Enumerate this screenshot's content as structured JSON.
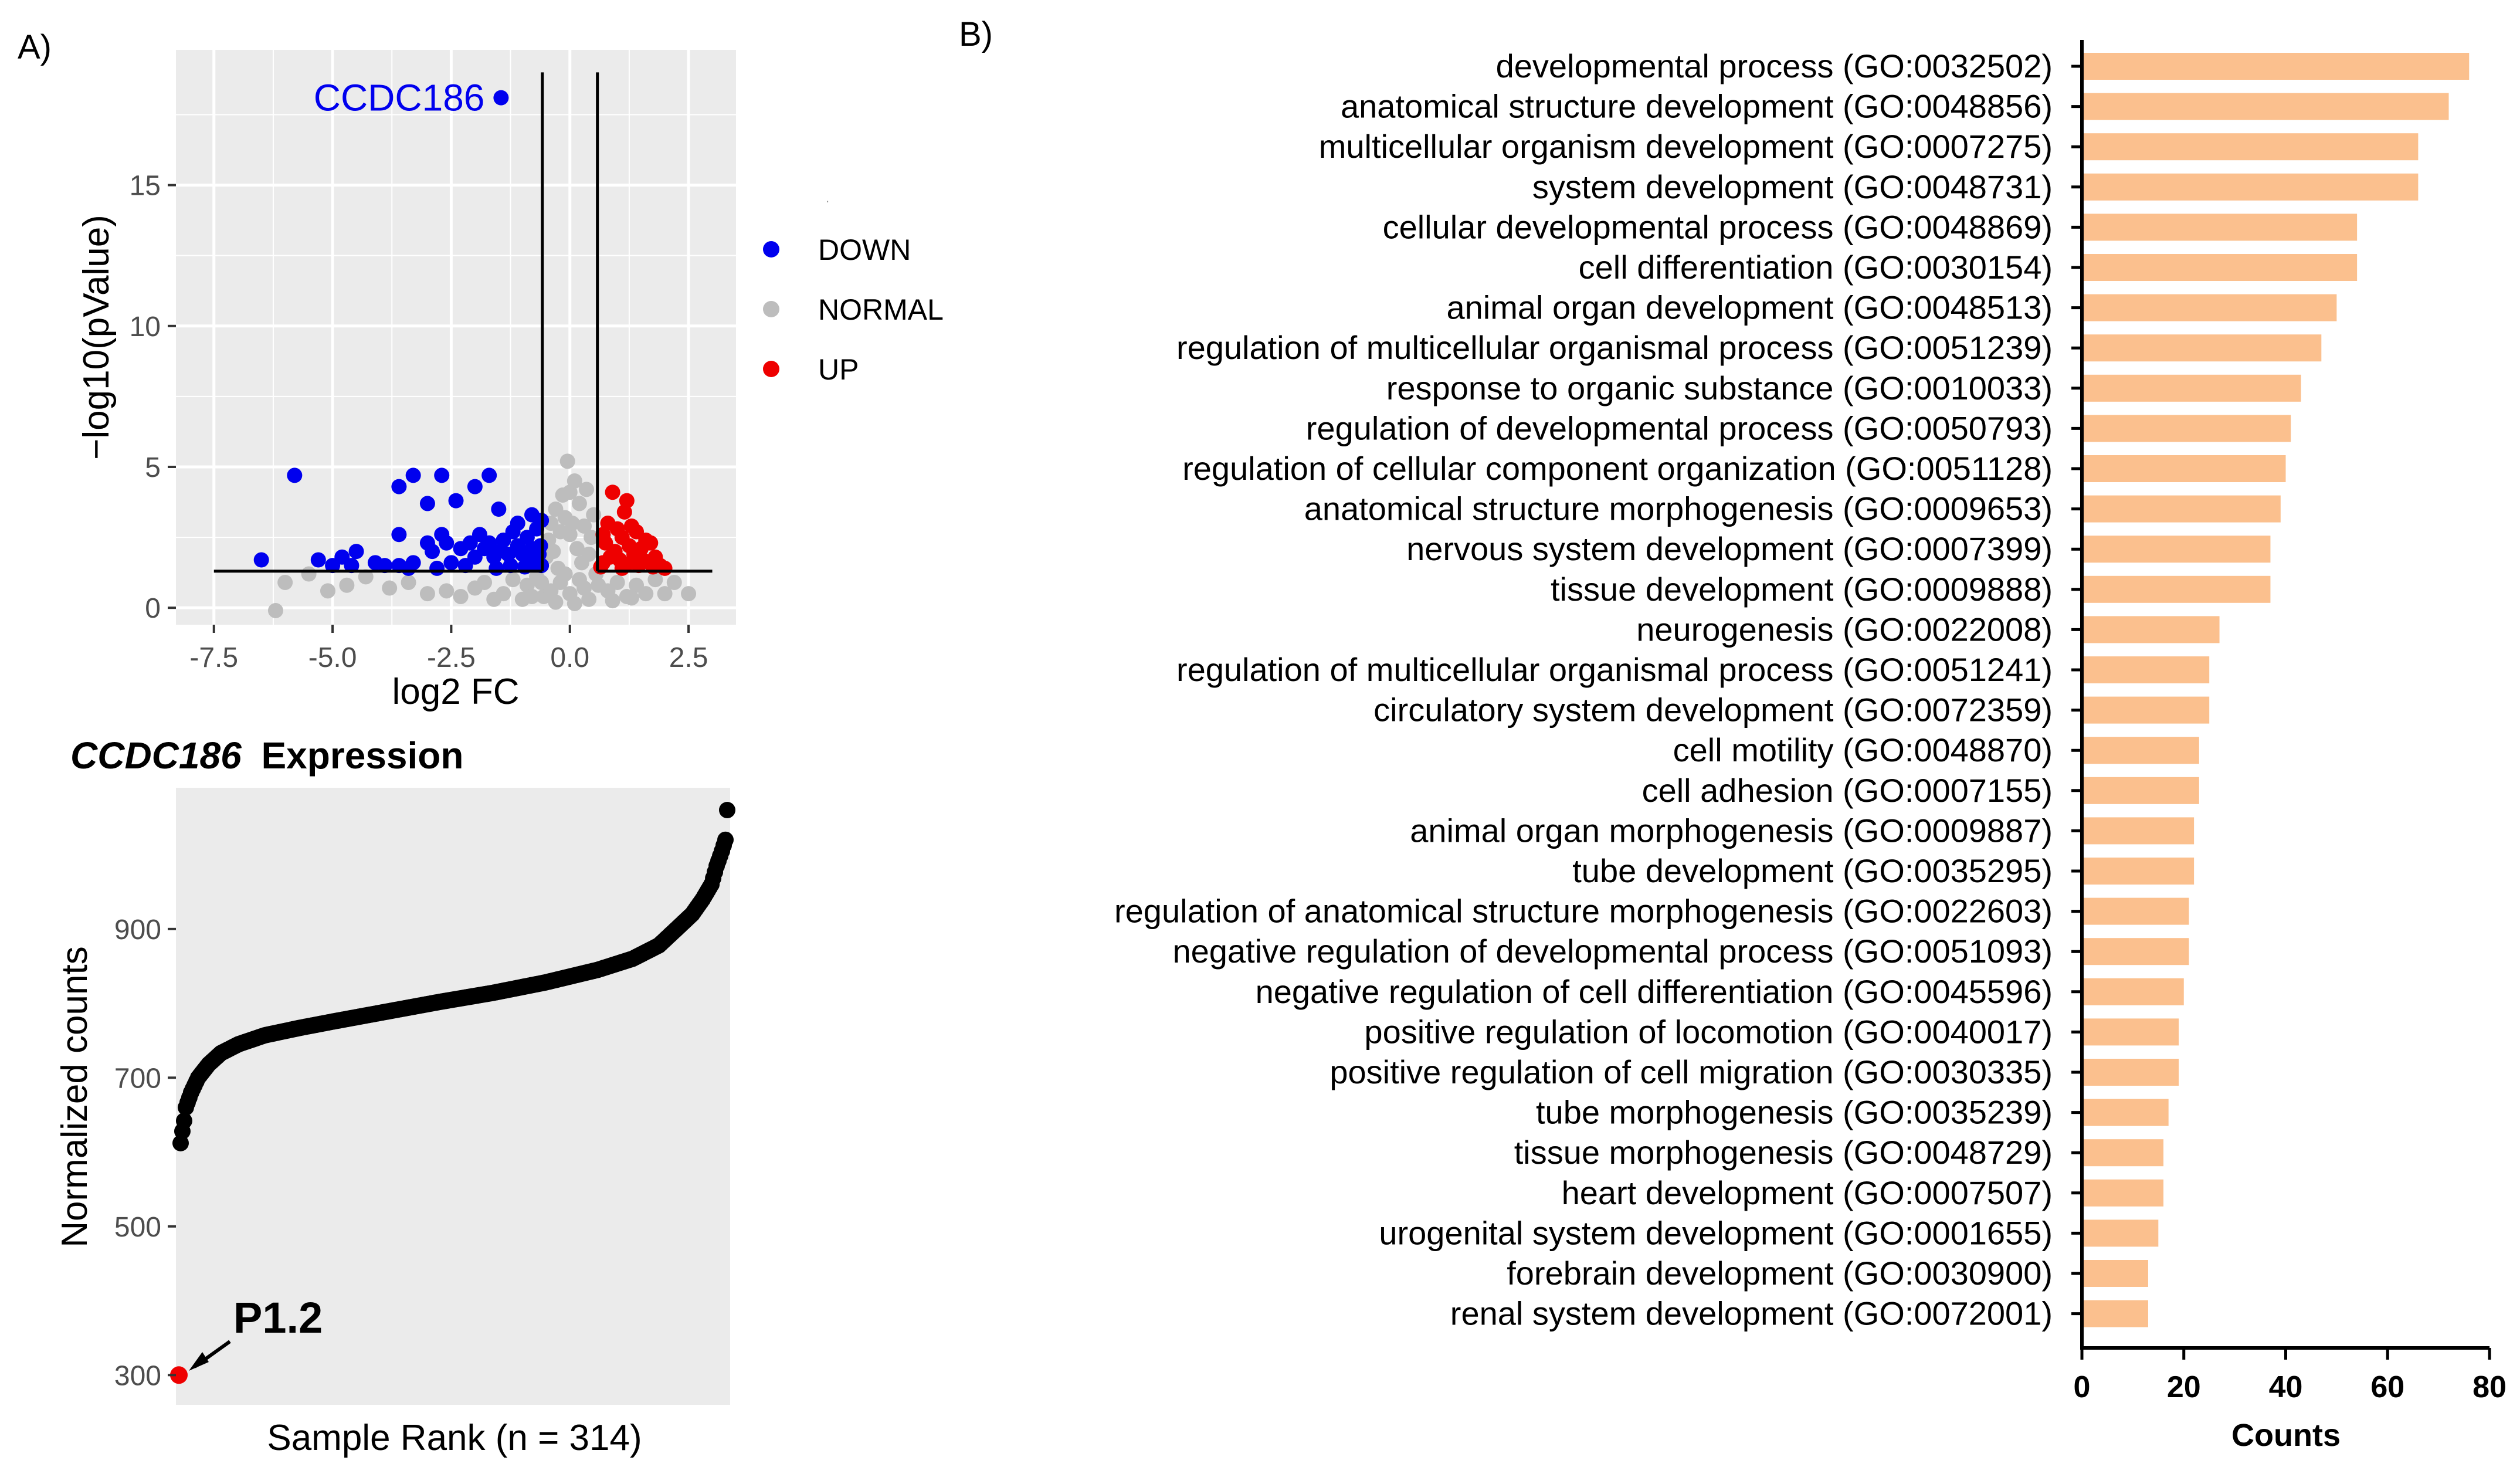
{
  "colors": {
    "panel_bg": "#ebebeb",
    "grid": "#ffffff",
    "down": "#0000ee",
    "normal": "#bdbdbd",
    "up": "#ee0000",
    "bar": "#fbc08e",
    "black": "#000000",
    "axis_text": "#4d4d4d"
  },
  "panel_a_label": "A)",
  "panel_b_label": "B)",
  "volcano": {
    "ylabel": "−log10(pValue)",
    "xlabel": "log2 FC",
    "annotation_gene": "CCDC186",
    "legend_title": ".",
    "legend": [
      {
        "key": "down",
        "label": "DOWN"
      },
      {
        "key": "normal",
        "label": "NORMAL"
      },
      {
        "key": "up",
        "label": "UP"
      }
    ]
  },
  "expression": {
    "title_gene": "CCDC186",
    "title_rest": "Expression",
    "ylabel": "Normalized counts",
    "xlabel": "Sample Rank (n = 314)",
    "highlight_label": "P1.2"
  },
  "go": {
    "xlabel": "Counts"
  },
  "chart_data": [
    {
      "type": "scatter",
      "name": "volcano",
      "xlabel": "log2 FC",
      "ylabel": "−log10(pValue)",
      "xlim": [
        -8.3,
        3.5
      ],
      "ylim": [
        -0.6,
        19.8
      ],
      "xticks": [
        -7.5,
        -5.0,
        -2.5,
        0.0,
        2.5
      ],
      "xtick_labels": [
        "-7.5",
        "-5.0",
        "-2.5",
        "0.0",
        "2.5"
      ],
      "yticks": [
        0,
        5,
        10,
        15
      ],
      "ytick_labels": [
        "0",
        "5",
        "10",
        "15"
      ],
      "thresholds": {
        "log2fc_low": -0.58,
        "log2fc_high": 0.58,
        "neg_log10_p": 1.3,
        "vline_top": 19.0
      },
      "legend": [
        "DOWN",
        "NORMAL",
        "UP"
      ],
      "annotation": {
        "text": "CCDC186",
        "x": -1.45,
        "y": 18.1
      },
      "series": [
        {
          "name": "DOWN",
          "points": [
            [
              -1.45,
              18.1
            ],
            [
              -5.8,
              4.7
            ],
            [
              -3.3,
              4.7
            ],
            [
              -2.7,
              4.7
            ],
            [
              -3.6,
              4.3
            ],
            [
              -2.0,
              4.3
            ],
            [
              -1.7,
              4.7
            ],
            [
              -2.4,
              3.8
            ],
            [
              -3.0,
              3.7
            ],
            [
              -1.5,
              3.5
            ],
            [
              -0.8,
              3.3
            ],
            [
              -0.6,
              3.1
            ],
            [
              -1.1,
              3.0
            ],
            [
              -3.6,
              2.6
            ],
            [
              -4.5,
              2.0
            ],
            [
              -4.8,
              1.8
            ],
            [
              -6.5,
              1.7
            ],
            [
              -5.3,
              1.7
            ],
            [
              -5.0,
              1.5
            ],
            [
              -4.6,
              1.5
            ],
            [
              -4.1,
              1.6
            ],
            [
              -3.9,
              1.5
            ],
            [
              -3.6,
              1.5
            ],
            [
              -3.3,
              1.6
            ],
            [
              -3.0,
              2.3
            ],
            [
              -2.9,
              2.0
            ],
            [
              -2.7,
              2.6
            ],
            [
              -2.6,
              2.3
            ],
            [
              -2.5,
              1.6
            ],
            [
              -2.3,
              2.1
            ],
            [
              -2.1,
              2.3
            ],
            [
              -2.0,
              1.8
            ],
            [
              -1.9,
              2.6
            ],
            [
              -1.8,
              2.1
            ],
            [
              -1.7,
              2.3
            ],
            [
              -1.6,
              1.8
            ],
            [
              -1.5,
              2.0
            ],
            [
              -1.4,
              2.4
            ],
            [
              -1.3,
              1.9
            ],
            [
              -1.2,
              2.7
            ],
            [
              -1.1,
              2.2
            ],
            [
              -1.0,
              1.9
            ],
            [
              -0.9,
              2.5
            ],
            [
              -0.85,
              1.7
            ],
            [
              -0.8,
              2.1
            ],
            [
              -0.75,
              1.6
            ],
            [
              -0.7,
              2.8
            ],
            [
              -0.65,
              1.9
            ],
            [
              -0.62,
              2.2
            ],
            [
              -0.6,
              1.5
            ],
            [
              -2.8,
              1.4
            ],
            [
              -3.4,
              1.4
            ],
            [
              -1.25,
              1.5
            ],
            [
              -1.55,
              1.4
            ],
            [
              -2.2,
              1.5
            ],
            [
              -0.95,
              1.45
            ]
          ]
        },
        {
          "name": "NORMAL",
          "points": [
            [
              -6.0,
              0.9
            ],
            [
              -5.5,
              1.2
            ],
            [
              -5.1,
              0.6
            ],
            [
              -4.7,
              0.8
            ],
            [
              -4.3,
              1.1
            ],
            [
              -3.8,
              0.7
            ],
            [
              -3.4,
              0.9
            ],
            [
              -6.2,
              -0.1
            ],
            [
              -3.0,
              0.5
            ],
            [
              -2.6,
              0.6
            ],
            [
              -2.3,
              0.4
            ],
            [
              -2.0,
              0.7
            ],
            [
              -1.8,
              0.9
            ],
            [
              -1.6,
              0.3
            ],
            [
              -1.4,
              0.5
            ],
            [
              -1.2,
              1.0
            ],
            [
              -1.0,
              0.3
            ],
            [
              -0.9,
              0.8
            ],
            [
              -0.7,
              1.1
            ],
            [
              -0.55,
              0.4
            ],
            [
              -0.5,
              1.8
            ],
            [
              -0.45,
              2.4
            ],
            [
              -0.4,
              3.0
            ],
            [
              -0.35,
              2.0
            ],
            [
              -0.3,
              3.5
            ],
            [
              -0.25,
              1.4
            ],
            [
              -0.2,
              2.7
            ],
            [
              -0.15,
              4.0
            ],
            [
              -0.1,
              3.2
            ],
            [
              -0.05,
              5.2
            ],
            [
              0.0,
              4.1
            ],
            [
              0.0,
              2.6
            ],
            [
              0.05,
              3.0
            ],
            [
              0.1,
              4.5
            ],
            [
              0.15,
              2.1
            ],
            [
              0.2,
              3.7
            ],
            [
              0.25,
              1.6
            ],
            [
              0.3,
              2.9
            ],
            [
              0.35,
              4.2
            ],
            [
              0.4,
              1.9
            ],
            [
              0.45,
              2.5
            ],
            [
              0.5,
              3.3
            ],
            [
              0.55,
              1.2
            ],
            [
              -0.4,
              0.6
            ],
            [
              -0.2,
              0.9
            ],
            [
              0.0,
              0.5
            ],
            [
              0.2,
              1.0
            ],
            [
              0.4,
              0.3
            ],
            [
              0.6,
              0.8
            ],
            [
              0.8,
              0.6
            ],
            [
              1.0,
              0.9
            ],
            [
              1.2,
              0.4
            ],
            [
              1.4,
              0.8
            ],
            [
              1.6,
              0.5
            ],
            [
              1.8,
              1.0
            ],
            [
              2.0,
              0.5
            ],
            [
              2.2,
              0.9
            ],
            [
              2.5,
              0.5
            ],
            [
              -0.3,
              0.2
            ],
            [
              0.1,
              0.15
            ],
            [
              0.3,
              0.7
            ],
            [
              -0.1,
              1.2
            ],
            [
              -0.6,
              0.9
            ],
            [
              -0.8,
              0.4
            ],
            [
              0.9,
              0.25
            ],
            [
              1.3,
              0.35
            ]
          ]
        },
        {
          "name": "UP",
          "points": [
            [
              0.9,
              4.1
            ],
            [
              1.2,
              3.8
            ],
            [
              1.15,
              3.4
            ],
            [
              0.8,
              3.0
            ],
            [
              1.3,
              2.9
            ],
            [
              1.0,
              2.8
            ],
            [
              1.4,
              2.7
            ],
            [
              0.7,
              2.6
            ],
            [
              1.1,
              2.5
            ],
            [
              1.6,
              2.4
            ],
            [
              1.7,
              2.3
            ],
            [
              0.75,
              2.3
            ],
            [
              1.25,
              2.2
            ],
            [
              1.5,
              2.1
            ],
            [
              0.95,
              2.0
            ],
            [
              1.35,
              1.9
            ],
            [
              1.8,
              1.8
            ],
            [
              0.85,
              1.8
            ],
            [
              1.05,
              1.7
            ],
            [
              1.6,
              1.65
            ],
            [
              1.9,
              1.5
            ],
            [
              1.45,
              1.5
            ],
            [
              0.7,
              1.6
            ],
            [
              1.2,
              1.55
            ],
            [
              1.75,
              1.45
            ],
            [
              1.1,
              1.4
            ],
            [
              0.65,
              1.45
            ],
            [
              2.0,
              1.4
            ]
          ]
        }
      ]
    },
    {
      "type": "scatter",
      "name": "ccdc186_expression",
      "title": "CCDC186 Expression",
      "xlabel": "Sample Rank (n = 314)",
      "ylabel": "Normalized counts",
      "xlim": [
        1,
        314
      ],
      "ylim": [
        260,
        1090
      ],
      "yticks": [
        300,
        500,
        700,
        900
      ],
      "ytick_labels": [
        "300",
        "500",
        "700",
        "900"
      ],
      "grid": false,
      "rank_curve": [
        [
          1,
          300
        ],
        [
          2,
          612
        ],
        [
          3,
          628
        ],
        [
          4,
          642
        ],
        [
          5,
          660
        ],
        [
          8,
          680
        ],
        [
          12,
          700
        ],
        [
          18,
          718
        ],
        [
          25,
          733
        ],
        [
          35,
          745
        ],
        [
          50,
          757
        ],
        [
          70,
          767
        ],
        [
          90,
          776
        ],
        [
          120,
          789
        ],
        [
          150,
          802
        ],
        [
          180,
          814
        ],
        [
          210,
          828
        ],
        [
          240,
          845
        ],
        [
          260,
          860
        ],
        [
          275,
          878
        ],
        [
          285,
          900
        ],
        [
          294,
          920
        ],
        [
          300,
          940
        ],
        [
          305,
          960
        ],
        [
          308,
          985
        ],
        [
          311,
          1005
        ],
        [
          313,
          1020
        ],
        [
          314,
          1060
        ]
      ],
      "highlight": {
        "label": "P1.2",
        "rank": 1,
        "value": 300
      }
    },
    {
      "type": "bar",
      "name": "go_enrichment",
      "orientation": "horizontal",
      "xlabel": "Counts",
      "xlim": [
        0,
        80
      ],
      "xticks": [
        0,
        20,
        40,
        60,
        80
      ],
      "xtick_labels": [
        "0",
        "20",
        "40",
        "60",
        "80"
      ],
      "categories": [
        "developmental process (GO:0032502)",
        "anatomical structure development (GO:0048856)",
        "multicellular organism development (GO:0007275)",
        "system development (GO:0048731)",
        "cellular developmental process (GO:0048869)",
        "cell differentiation (GO:0030154)",
        "animal organ development (GO:0048513)",
        "regulation of multicellular organismal process (GO:0051239)",
        "response to organic substance (GO:0010033)",
        "regulation of developmental process (GO:0050793)",
        "regulation of cellular component organization (GO:0051128)",
        "anatomical structure morphogenesis (GO:0009653)",
        "nervous system development (GO:0007399)",
        "tissue development (GO:0009888)",
        "neurogenesis (GO:0022008)",
        "regulation of multicellular organismal process (GO:0051241)",
        "circulatory system development (GO:0072359)",
        "cell motility (GO:0048870)",
        "cell adhesion (GO:0007155)",
        "animal organ morphogenesis (GO:0009887)",
        "tube development (GO:0035295)",
        "regulation of anatomical structure morphogenesis (GO:0022603)",
        "negative regulation of developmental process (GO:0051093)",
        "negative regulation of cell differentiation (GO:0045596)",
        "positive regulation of locomotion (GO:0040017)",
        "positive regulation of cell migration (GO:0030335)",
        "tube morphogenesis (GO:0035239)",
        "tissue morphogenesis (GO:0048729)",
        "heart development (GO:0007507)",
        "urogenital system development (GO:0001655)",
        "forebrain development (GO:0030900)",
        "renal system development (GO:0072001)"
      ],
      "values": [
        76,
        72,
        66,
        66,
        54,
        54,
        50,
        47,
        43,
        41,
        40,
        39,
        37,
        37,
        27,
        25,
        25,
        23,
        23,
        22,
        22,
        21,
        21,
        20,
        19,
        19,
        17,
        16,
        16,
        15,
        13,
        13
      ]
    }
  ]
}
